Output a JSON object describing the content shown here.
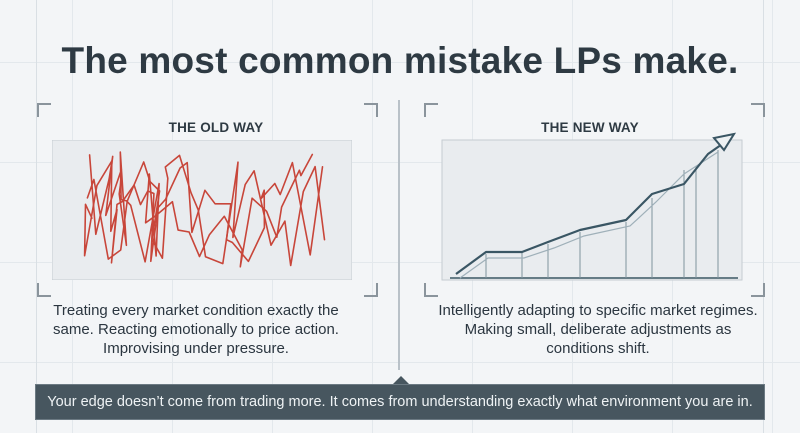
{
  "title": "The most common mistake LPs make.",
  "old_way": {
    "label": "THE OLD WAY",
    "description": "Treating every market condition exactly the same. Reacting emotionally to price action. Improvising under pressure.",
    "line_color": "#c8463a",
    "icon": "chaotic-scribble-chart-icon"
  },
  "new_way": {
    "label": "THE NEW WAY",
    "description": "Intelligently adapting to specific market regimes. Making small, deliberate adjustments as conditions shift.",
    "line_color": "#3a5664",
    "icon": "rising-staircase-arrow-icon"
  },
  "banner": {
    "text": "Your edge doesn’t come from trading more. It comes from understanding exactly what environment you are in."
  },
  "colors": {
    "background": "#f3f5f7",
    "banner_bg": "#47565f",
    "banner_text": "#eef2f4",
    "title_text": "#2e3a43"
  }
}
